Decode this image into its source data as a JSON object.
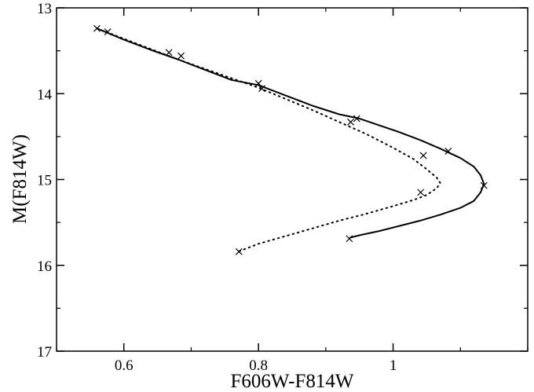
{
  "chart_data": {
    "type": "line",
    "xlabel": "F606W-F814W",
    "ylabel": "M(F814W)",
    "xlim": [
      0.5,
      1.2
    ],
    "ylim": [
      17,
      13
    ],
    "y_inverted": true,
    "grid": false,
    "x_ticks": [
      0.6,
      0.8,
      1.0
    ],
    "x_tick_labels": [
      "0.6",
      "0.8",
      "1"
    ],
    "y_ticks": [
      13,
      14,
      15,
      16,
      17
    ],
    "y_tick_labels": [
      "13",
      "14",
      "15",
      "16",
      "17"
    ],
    "series": [
      {
        "style": "solid",
        "color": "#000000",
        "x": [
          0.56,
          0.6,
          0.64,
          0.68,
          0.72,
          0.76,
          0.8,
          0.84,
          0.88,
          0.92,
          0.95,
          0.98,
          1.01,
          1.04,
          1.07,
          1.1,
          1.12,
          1.13,
          1.135,
          1.13,
          1.12,
          1.1,
          1.07,
          1.04,
          1.01,
          0.98,
          0.95,
          0.935
        ],
        "y": [
          13.24,
          13.37,
          13.49,
          13.6,
          13.72,
          13.84,
          13.9,
          14.02,
          14.14,
          14.24,
          14.29,
          14.37,
          14.45,
          14.54,
          14.64,
          14.75,
          14.85,
          14.95,
          15.05,
          15.15,
          15.25,
          15.33,
          15.41,
          15.48,
          15.54,
          15.6,
          15.65,
          15.68
        ],
        "markers": {
          "x": [
            0.56,
            0.576,
            0.667,
            0.685,
            0.8,
            0.946,
            1.082,
            1.135,
            0.935
          ],
          "y": [
            13.24,
            13.28,
            13.52,
            13.56,
            13.88,
            14.29,
            14.67,
            15.07,
            15.69
          ]
        }
      },
      {
        "style": "dotted",
        "color": "#000000",
        "x": [
          0.56,
          0.6,
          0.64,
          0.68,
          0.72,
          0.76,
          0.8,
          0.84,
          0.88,
          0.92,
          0.96,
          1.0,
          1.03,
          1.05,
          1.065,
          1.07,
          1.065,
          1.05,
          1.03,
          1.0,
          0.96,
          0.92,
          0.88,
          0.84,
          0.8,
          0.77
        ],
        "y": [
          13.24,
          13.36,
          13.48,
          13.6,
          13.71,
          13.82,
          13.93,
          14.06,
          14.19,
          14.33,
          14.47,
          14.63,
          14.76,
          14.88,
          14.98,
          15.04,
          15.1,
          15.18,
          15.24,
          15.31,
          15.4,
          15.48,
          15.57,
          15.66,
          15.75,
          15.84
        ],
        "markers": {
          "x": [
            0.805,
            0.937,
            1.045,
            1.041,
            0.771
          ],
          "y": [
            13.94,
            14.33,
            14.72,
            15.15,
            15.84
          ]
        }
      }
    ]
  }
}
